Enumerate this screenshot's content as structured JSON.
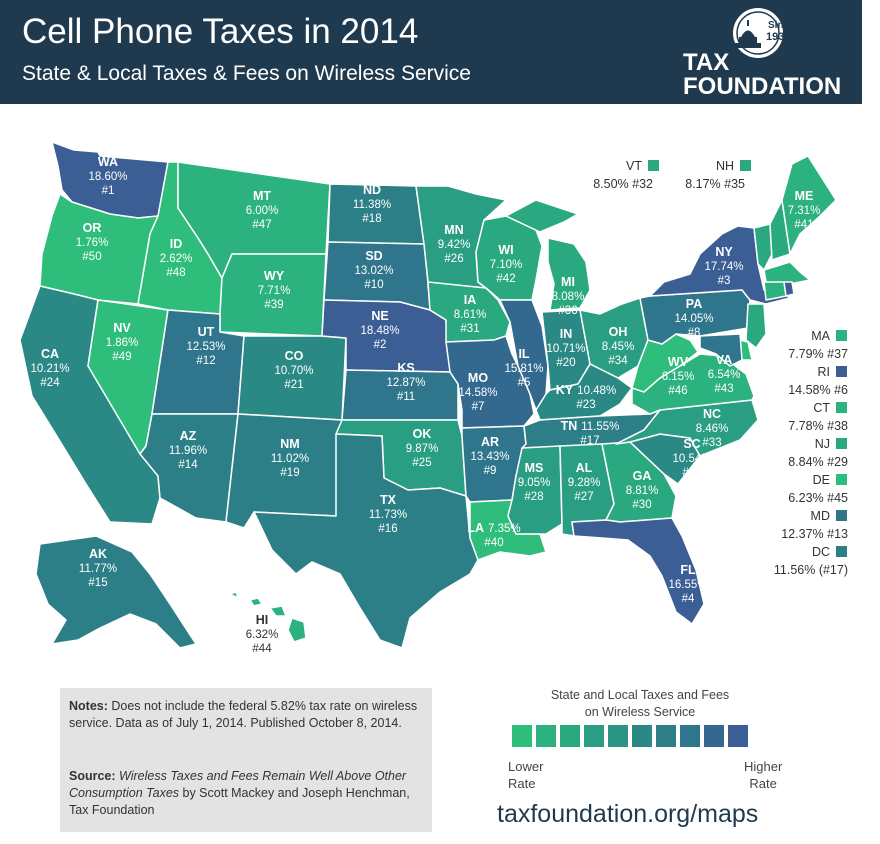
{
  "header": {
    "title": "Cell Phone Taxes in 2014",
    "subtitle": "State & Local Taxes & Fees on Wireless Service",
    "logo": {
      "since": "Since",
      "year": "1937",
      "line1": "TAX",
      "line2": "FOUNDATION"
    }
  },
  "colors": {
    "header_bg": "#1f3a4e",
    "lowest": "#2fbd7c",
    "highest": "#3b5e94",
    "scale": [
      "#2fbd7c",
      "#2cb27e",
      "#2aa880",
      "#2a9e82",
      "#2a9383",
      "#2b8985",
      "#2c7f87",
      "#2f758b",
      "#33698f",
      "#3b5e94"
    ]
  },
  "states": [
    {
      "abbr": "WA",
      "rate": "18.60%",
      "rank": "#1"
    },
    {
      "abbr": "OR",
      "rate": "1.76%",
      "rank": "#50"
    },
    {
      "abbr": "CA",
      "rate": "10.21%",
      "rank": "#24"
    },
    {
      "abbr": "NV",
      "rate": "1.86%",
      "rank": "#49"
    },
    {
      "abbr": "ID",
      "rate": "2.62%",
      "rank": "#48"
    },
    {
      "abbr": "MT",
      "rate": "6.00%",
      "rank": "#47"
    },
    {
      "abbr": "WY",
      "rate": "7.71%",
      "rank": "#39"
    },
    {
      "abbr": "UT",
      "rate": "12.53%",
      "rank": "#12"
    },
    {
      "abbr": "CO",
      "rate": "10.70%",
      "rank": "#21"
    },
    {
      "abbr": "AZ",
      "rate": "11.96%",
      "rank": "#14"
    },
    {
      "abbr": "NM",
      "rate": "11.02%",
      "rank": "#19"
    },
    {
      "abbr": "ND",
      "rate": "11.38%",
      "rank": "#18"
    },
    {
      "abbr": "SD",
      "rate": "13.02%",
      "rank": "#10"
    },
    {
      "abbr": "NE",
      "rate": "18.48%",
      "rank": "#2"
    },
    {
      "abbr": "KS",
      "rate": "12.87%",
      "rank": "#11"
    },
    {
      "abbr": "OK",
      "rate": "9.87%",
      "rank": "#25"
    },
    {
      "abbr": "TX",
      "rate": "11.73%",
      "rank": "#16"
    },
    {
      "abbr": "MN",
      "rate": "9.42%",
      "rank": "#26"
    },
    {
      "abbr": "IA",
      "rate": "8.61%",
      "rank": "#31"
    },
    {
      "abbr": "MO",
      "rate": "14.58%",
      "rank": "#7"
    },
    {
      "abbr": "AR",
      "rate": "13.43%",
      "rank": "#9"
    },
    {
      "abbr": "LA",
      "rate": "7.35%",
      "rank": "#40"
    },
    {
      "abbr": "WI",
      "rate": "7.10%",
      "rank": "#42"
    },
    {
      "abbr": "IL",
      "rate": "15.81%",
      "rank": "#5"
    },
    {
      "abbr": "MI",
      "rate": "8.08%",
      "rank": "#36"
    },
    {
      "abbr": "IN",
      "rate": "10.71%",
      "rank": "#20"
    },
    {
      "abbr": "OH",
      "rate": "8.45%",
      "rank": "#34"
    },
    {
      "abbr": "KY",
      "rate": "10.48%",
      "rank": "#23"
    },
    {
      "abbr": "TN",
      "rate": "11.55%",
      "rank": "#17"
    },
    {
      "abbr": "MS",
      "rate": "9.05%",
      "rank": "#28"
    },
    {
      "abbr": "AL",
      "rate": "9.28%",
      "rank": "#27"
    },
    {
      "abbr": "GA",
      "rate": "8.81%",
      "rank": "#30"
    },
    {
      "abbr": "FL",
      "rate": "16.55%",
      "rank": "#4"
    },
    {
      "abbr": "SC",
      "rate": "10.54%",
      "rank": "#22"
    },
    {
      "abbr": "NC",
      "rate": "8.46%",
      "rank": "#33"
    },
    {
      "abbr": "VA",
      "rate": "6.54%",
      "rank": "#43"
    },
    {
      "abbr": "WV",
      "rate": "6.15%",
      "rank": "#46"
    },
    {
      "abbr": "PA",
      "rate": "14.05%",
      "rank": "#8"
    },
    {
      "abbr": "NY",
      "rate": "17.74%",
      "rank": "#3"
    },
    {
      "abbr": "ME",
      "rate": "7.31%",
      "rank": "#41"
    },
    {
      "abbr": "AK",
      "rate": "11.77%",
      "rank": "#15"
    },
    {
      "abbr": "HI",
      "rate": "6.32%",
      "rank": "#44"
    }
  ],
  "side_states": [
    {
      "abbr": "VT",
      "text": "8.50% #32"
    },
    {
      "abbr": "NH",
      "text": "8.17% #35"
    },
    {
      "abbr": "MA",
      "text": "7.79% #37"
    },
    {
      "abbr": "RI",
      "text": "14.58% #6"
    },
    {
      "abbr": "CT",
      "text": "7.78% #38"
    },
    {
      "abbr": "NJ",
      "text": "8.84% #29"
    },
    {
      "abbr": "DE",
      "text": "6.23% #45"
    },
    {
      "abbr": "MD",
      "text": "12.37% #13"
    },
    {
      "abbr": "DC",
      "text": "11.56% (#17)"
    }
  ],
  "notes": {
    "label": "Notes:",
    "text": " Does not include the federal 5.82% tax rate on wireless service. Data as of July 1, 2014. Published October 8, 2014.",
    "source_label": "Source:",
    "source_title": "Wireless Taxes and Fees Remain Well Above Other Consumption Taxes",
    "source_rest": " by Scott Mackey and Joseph Henchman, Tax Foundation"
  },
  "legend": {
    "title_line1": "State and Local Taxes and Fees",
    "title_line2": "on Wireless Service",
    "low_line1": "Lower",
    "low_line2": "Rate",
    "high_line1": "Higher",
    "high_line2": "Rate"
  },
  "url": "taxfoundation.org/maps"
}
